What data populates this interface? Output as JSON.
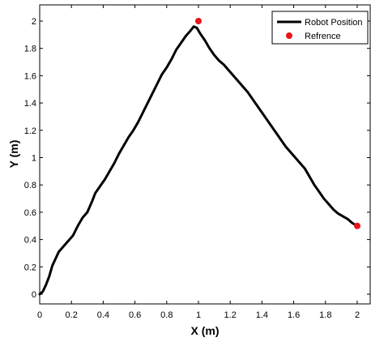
{
  "chart_data": {
    "type": "line",
    "title": "",
    "xlabel": "X (m)",
    "ylabel": "Y (m)",
    "xlim": [
      0,
      2
    ],
    "ylim": [
      -0.05,
      2.05
    ],
    "xticks": [
      "0",
      "0.2",
      "0.4",
      "0.6",
      "0.8",
      "1",
      "1.2",
      "1.4",
      "1.6",
      "1.8",
      "2"
    ],
    "yticks": [
      "0",
      "0.2",
      "0.4",
      "0.6",
      "0.8",
      "1",
      "1.2",
      "1.4",
      "1.6",
      "1.8",
      "2"
    ],
    "grid": false,
    "legend_position": "top-right",
    "series": [
      {
        "name": "Robot Position",
        "kind": "line",
        "color": "#000000",
        "x": [
          0.0,
          0.02,
          0.04,
          0.06,
          0.08,
          0.1,
          0.12,
          0.15,
          0.18,
          0.21,
          0.24,
          0.27,
          0.3,
          0.33,
          0.35,
          0.38,
          0.41,
          0.44,
          0.47,
          0.5,
          0.53,
          0.56,
          0.59,
          0.62,
          0.65,
          0.68,
          0.71,
          0.74,
          0.77,
          0.8,
          0.83,
          0.86,
          0.89,
          0.92,
          0.95,
          0.97,
          0.99,
          1.01,
          1.04,
          1.07,
          1.1,
          1.13,
          1.16,
          1.19,
          1.22,
          1.25,
          1.28,
          1.31,
          1.34,
          1.37,
          1.4,
          1.43,
          1.46,
          1.49,
          1.52,
          1.55,
          1.58,
          1.61,
          1.64,
          1.67,
          1.7,
          1.73,
          1.76,
          1.79,
          1.82,
          1.85,
          1.88,
          1.91,
          1.94,
          1.97,
          2.0
        ],
        "y": [
          0.0,
          0.02,
          0.07,
          0.13,
          0.21,
          0.26,
          0.31,
          0.35,
          0.39,
          0.43,
          0.5,
          0.56,
          0.6,
          0.68,
          0.74,
          0.79,
          0.84,
          0.9,
          0.96,
          1.03,
          1.09,
          1.15,
          1.2,
          1.26,
          1.33,
          1.4,
          1.47,
          1.54,
          1.61,
          1.66,
          1.72,
          1.79,
          1.84,
          1.89,
          1.93,
          1.96,
          1.95,
          1.91,
          1.86,
          1.8,
          1.75,
          1.71,
          1.68,
          1.64,
          1.6,
          1.56,
          1.52,
          1.48,
          1.43,
          1.38,
          1.33,
          1.28,
          1.23,
          1.18,
          1.13,
          1.08,
          1.04,
          1.0,
          0.96,
          0.92,
          0.86,
          0.8,
          0.75,
          0.7,
          0.66,
          0.62,
          0.59,
          0.57,
          0.55,
          0.52,
          0.5
        ]
      },
      {
        "name": "Refrence",
        "kind": "points",
        "color": "#e8141a",
        "x": [
          1.0,
          2.0
        ],
        "y": [
          2.0,
          0.5
        ]
      }
    ]
  }
}
